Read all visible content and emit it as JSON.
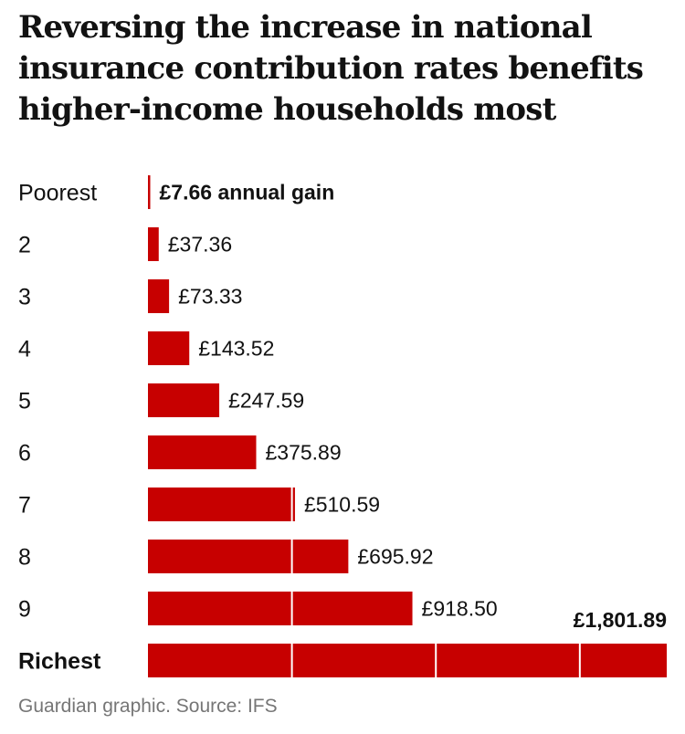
{
  "page": {
    "title": "Reversing the increase in national insurance contribution rates benefits higher-income households most",
    "source": "Guardian graphic. Source: IFS"
  },
  "colors": {
    "bar": "#c70000",
    "text": "#121212",
    "source": "#767676"
  },
  "chart_data": {
    "type": "bar",
    "orientation": "horizontal",
    "title": "Reversing the increase in national insurance contribution rates benefits higher-income households most",
    "categories": [
      "Poorest",
      "2",
      "3",
      "4",
      "5",
      "6",
      "7",
      "8",
      "9",
      "Richest"
    ],
    "values": [
      7.66,
      37.36,
      73.33,
      143.52,
      247.59,
      375.89,
      510.59,
      695.92,
      918.5,
      1801.89
    ],
    "value_labels": [
      "£7.66 annual gain",
      "£37.36",
      "£73.33",
      "£143.52",
      "£247.59",
      "£375.89",
      "£510.59",
      "£695.92",
      "£918.50",
      "£1,801.89"
    ],
    "xlim": [
      0,
      1801.89
    ],
    "segment_dividers_at": [
      500,
      1000,
      1500
    ],
    "xlabel": "",
    "ylabel": "",
    "grid": false
  }
}
